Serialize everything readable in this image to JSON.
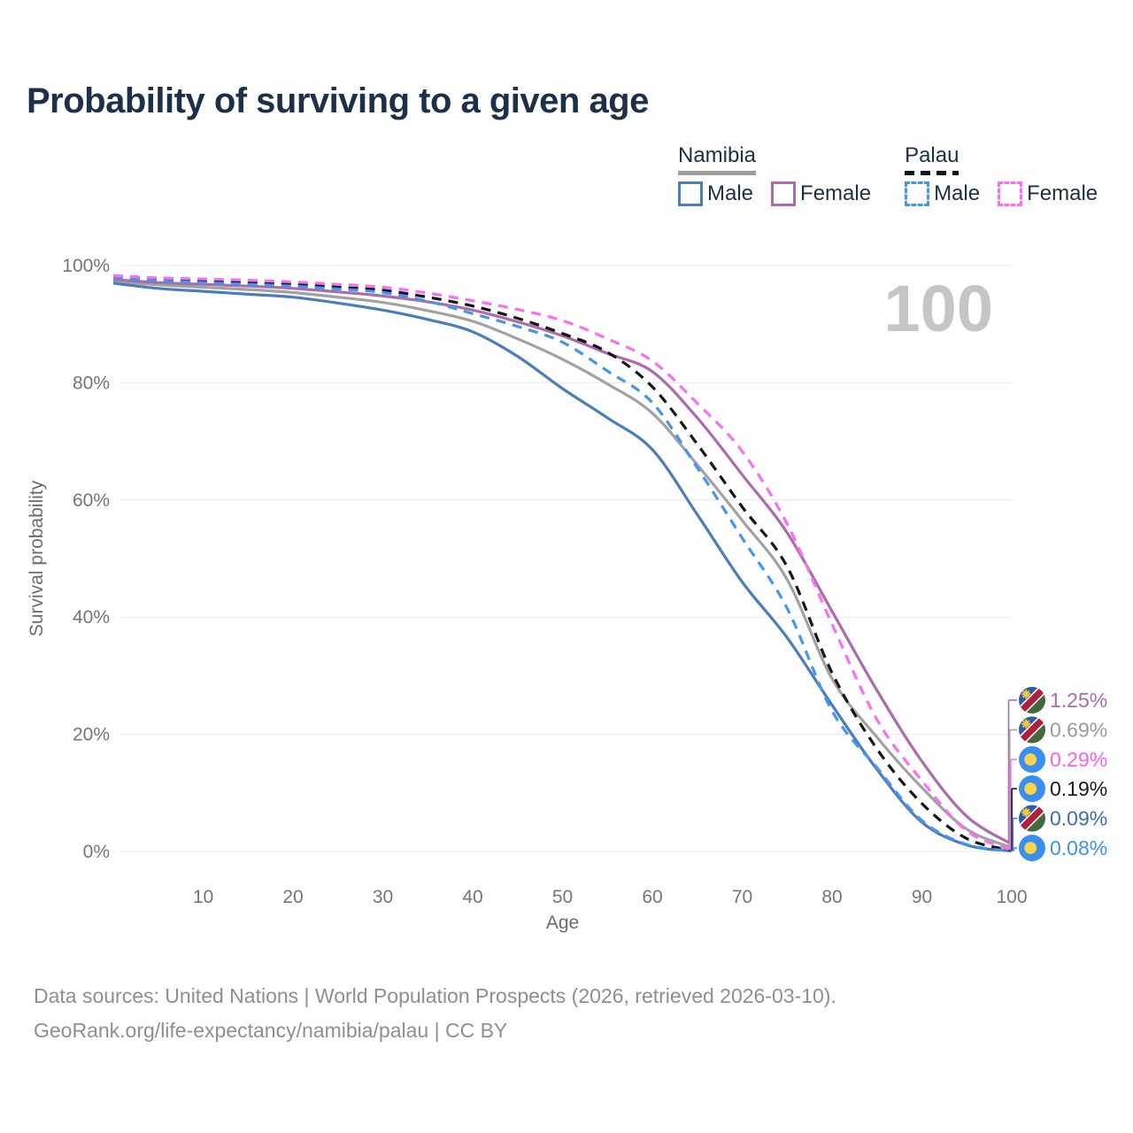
{
  "header": {
    "title": "Probability of surviving to a given age"
  },
  "watermark": "100",
  "legend": {
    "groups": [
      {
        "country": "Namibia",
        "line_style": "solid",
        "underline_color": "#9e9e9e",
        "items": [
          {
            "label": "Male",
            "color": "#4a7dbc"
          },
          {
            "label": "Female",
            "color": "#ab6cad"
          }
        ]
      },
      {
        "country": "Palau",
        "line_style": "dashed",
        "underline_color": "#161616",
        "items": [
          {
            "label": "Male",
            "color": "#4595ee"
          },
          {
            "label": "Female",
            "color": "#fb6ef1"
          }
        ]
      }
    ]
  },
  "chart_data": {
    "type": "line",
    "title": "Probability of surviving to a given age",
    "xlabel": "Age",
    "ylabel": "Survival probability",
    "xlim": [
      0,
      100
    ],
    "ylim": [
      0,
      100
    ],
    "grid": true,
    "x_ticks": [
      10,
      20,
      30,
      40,
      50,
      60,
      70,
      80,
      90,
      100
    ],
    "y_tick_labels": [
      "0%",
      "20%",
      "40%",
      "60%",
      "80%",
      "100%"
    ],
    "y_tick_values": [
      0,
      20,
      40,
      60,
      80,
      100
    ],
    "x": [
      0,
      5,
      10,
      15,
      20,
      25,
      30,
      35,
      40,
      45,
      50,
      55,
      60,
      65,
      70,
      75,
      80,
      85,
      90,
      95,
      100
    ],
    "series": [
      {
        "name": "Namibia Female",
        "country": "Namibia",
        "sex": "Female",
        "dash": false,
        "color": "#ab6cad",
        "label_color": "#ab6cad",
        "flag": "namibia",
        "end_label": "1.25%",
        "end_value": 1.25,
        "values": [
          97.6,
          97.1,
          96.8,
          96.5,
          96.1,
          95.5,
          94.8,
          93.8,
          92.4,
          90.4,
          88.0,
          85.0,
          81.9,
          74.0,
          64.3,
          54.4,
          41.0,
          27.5,
          15.4,
          6.0,
          1.25
        ]
      },
      {
        "name": "Namibia",
        "country": "Namibia",
        "sex": "Both",
        "dash": false,
        "color": "#a2a2a2",
        "label_color": "#9b9b9b",
        "flag": "namibia",
        "end_label": "0.69%",
        "end_value": 0.69,
        "values": [
          97.3,
          96.7,
          96.3,
          95.9,
          95.4,
          94.6,
          93.7,
          92.3,
          90.5,
          87.5,
          84.0,
          79.8,
          74.8,
          66.0,
          56.5,
          46.4,
          29.5,
          19.5,
          10.9,
          3.8,
          0.69
        ]
      },
      {
        "name": "Palau Female",
        "country": "Palau",
        "sex": "Female",
        "dash": true,
        "color": "#fb6ef1",
        "label_color": "#fb5fee",
        "flag": "palau",
        "end_label": "0.29%",
        "end_value": 0.29,
        "values": [
          98.3,
          97.9,
          97.7,
          97.5,
          97.2,
          96.8,
          96.3,
          95.3,
          94.0,
          92.5,
          90.6,
          87.5,
          83.7,
          76.5,
          68.3,
          55.9,
          38.8,
          22.5,
          12.1,
          3.5,
          0.29
        ]
      },
      {
        "name": "Palau",
        "country": "Palau",
        "sex": "Both",
        "dash": true,
        "color": "#161616",
        "label_color": "#1b1b1b",
        "flag": "palau",
        "end_label": "0.19%",
        "end_value": 0.19,
        "values": [
          98.1,
          97.6,
          97.3,
          97.1,
          96.8,
          96.3,
          95.8,
          94.6,
          93.1,
          91.0,
          88.4,
          85.2,
          79.3,
          69.5,
          58.8,
          48.6,
          30.5,
          17.5,
          8.2,
          2.2,
          0.19
        ]
      },
      {
        "name": "Namibia Male",
        "country": "Namibia",
        "sex": "Male",
        "dash": false,
        "color": "#4a7dbc",
        "label_color": "#3c6cb4",
        "flag": "namibia",
        "end_label": "0.09%",
        "end_value": 0.09,
        "values": [
          97.0,
          96.1,
          95.6,
          95.1,
          94.6,
          93.6,
          92.4,
          90.8,
          88.7,
          84.5,
          79.0,
          74.0,
          68.6,
          57.5,
          46.0,
          36.5,
          25.0,
          14.0,
          5.0,
          1.1,
          0.09
        ]
      },
      {
        "name": "Palau Male",
        "country": "Palau",
        "sex": "Male",
        "dash": true,
        "color": "#4595ee",
        "label_color": "#3e91ef",
        "flag": "palau",
        "end_label": "0.08%",
        "end_value": 0.08,
        "values": [
          98.0,
          97.4,
          97.1,
          96.8,
          96.5,
          96.0,
          95.4,
          93.9,
          91.8,
          89.6,
          86.9,
          82.0,
          76.6,
          65.5,
          53.5,
          41.5,
          24.0,
          14.3,
          5.3,
          1.2,
          0.08
        ]
      }
    ]
  },
  "footer": {
    "line1": "Data sources: United Nations | World Population Prospects (2026, retrieved 2026-03-10).",
    "line2": "GeoRank.org/life-expectancy/namibia/palau | CC BY"
  }
}
